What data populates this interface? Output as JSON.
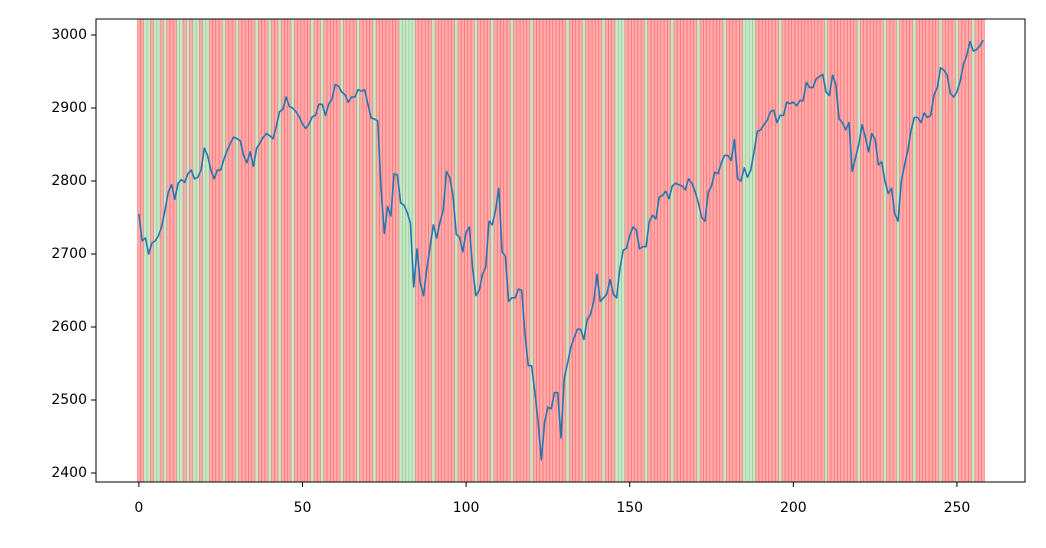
{
  "chart_data": {
    "type": "line",
    "color": "#1f77b4",
    "span_colors": [
      "#ff0000",
      "#2ca02c"
    ],
    "span_states": [
      0,
      0,
      1,
      1,
      0,
      1,
      1,
      0,
      1,
      0,
      0,
      0,
      1,
      1,
      0,
      1,
      0,
      1,
      1,
      0,
      1,
      1,
      0,
      0,
      0,
      0,
      1,
      0,
      0,
      0,
      1,
      0,
      0,
      0,
      0,
      0,
      1,
      0,
      0,
      0,
      1,
      0,
      0,
      1,
      0,
      0,
      0,
      1,
      0,
      0,
      0,
      0,
      0,
      1,
      0,
      0,
      1,
      0,
      0,
      0,
      0,
      0,
      1,
      0,
      0,
      0,
      0,
      1,
      0,
      0,
      0,
      0,
      1,
      0,
      0,
      0,
      0,
      0,
      0,
      0,
      1,
      1,
      1,
      1,
      1,
      0,
      0,
      0,
      0,
      0,
      1,
      0,
      0,
      0,
      0,
      0,
      0,
      1,
      0,
      0,
      0,
      0,
      0,
      1,
      0,
      0,
      0,
      0,
      1,
      0,
      0,
      0,
      0,
      0,
      1,
      0,
      0,
      0,
      0,
      0,
      1,
      0,
      0,
      0,
      0,
      0,
      0,
      0,
      0,
      0,
      0,
      1,
      0,
      0,
      0,
      0,
      1,
      0,
      0,
      0,
      0,
      0,
      1,
      0,
      0,
      0,
      1,
      1,
      1,
      0,
      0,
      0,
      0,
      0,
      0,
      1,
      0,
      0,
      0,
      0,
      0,
      0,
      0,
      1,
      0,
      0,
      0,
      0,
      0,
      0,
      0,
      1,
      0,
      0,
      0,
      0,
      0,
      0,
      0,
      1,
      0,
      0,
      0,
      0,
      0,
      1,
      1,
      1,
      1,
      0,
      0,
      0,
      0,
      0,
      0,
      0,
      1,
      0,
      0,
      0,
      0,
      0,
      0,
      0,
      0,
      0,
      0,
      0,
      0,
      0,
      1,
      0,
      0,
      0,
      0,
      0,
      0,
      0,
      0,
      0,
      1,
      0,
      0,
      0,
      0,
      0,
      0,
      0,
      1,
      0,
      0,
      0,
      1,
      0,
      0,
      0,
      0,
      1,
      0,
      0,
      0,
      0,
      0,
      0,
      0,
      1,
      0,
      0,
      0,
      0,
      1,
      0,
      0,
      0,
      0,
      1,
      0,
      0,
      0
    ],
    "values": [
      2755,
      2718,
      2722,
      2700,
      2715,
      2718,
      2725,
      2738,
      2760,
      2785,
      2795,
      2775,
      2797,
      2802,
      2798,
      2810,
      2815,
      2803,
      2805,
      2815,
      2845,
      2835,
      2815,
      2803,
      2815,
      2815,
      2830,
      2842,
      2852,
      2860,
      2858,
      2855,
      2835,
      2825,
      2840,
      2820,
      2845,
      2852,
      2860,
      2865,
      2862,
      2858,
      2875,
      2895,
      2898,
      2915,
      2902,
      2900,
      2895,
      2888,
      2878,
      2872,
      2878,
      2888,
      2890,
      2905,
      2905,
      2890,
      2905,
      2912,
      2932,
      2930,
      2922,
      2918,
      2908,
      2915,
      2915,
      2925,
      2923,
      2925,
      2905,
      2886,
      2885,
      2882,
      2790,
      2728,
      2765,
      2752,
      2810,
      2808,
      2770,
      2767,
      2757,
      2742,
      2655,
      2707,
      2660,
      2643,
      2680,
      2710,
      2740,
      2722,
      2743,
      2760,
      2813,
      2805,
      2780,
      2727,
      2723,
      2703,
      2730,
      2737,
      2680,
      2643,
      2650,
      2672,
      2682,
      2745,
      2740,
      2760,
      2790,
      2703,
      2697,
      2635,
      2640,
      2640,
      2652,
      2650,
      2590,
      2547,
      2547,
      2512,
      2470,
      2418,
      2470,
      2490,
      2488,
      2510,
      2510,
      2448,
      2530,
      2550,
      2572,
      2585,
      2597,
      2597,
      2583,
      2610,
      2617,
      2635,
      2672,
      2635,
      2640,
      2645,
      2665,
      2645,
      2640,
      2680,
      2705,
      2708,
      2725,
      2737,
      2733,
      2707,
      2710,
      2710,
      2745,
      2753,
      2748,
      2778,
      2780,
      2786,
      2776,
      2793,
      2797,
      2795,
      2793,
      2788,
      2803,
      2797,
      2785,
      2770,
      2750,
      2745,
      2785,
      2793,
      2812,
      2810,
      2825,
      2835,
      2835,
      2828,
      2857,
      2803,
      2800,
      2818,
      2805,
      2815,
      2840,
      2868,
      2870,
      2877,
      2883,
      2895,
      2897,
      2880,
      2890,
      2890,
      2908,
      2906,
      2908,
      2903,
      2910,
      2910,
      2935,
      2928,
      2928,
      2940,
      2943,
      2946,
      2922,
      2917,
      2945,
      2932,
      2885,
      2880,
      2870,
      2880,
      2813,
      2832,
      2850,
      2877,
      2860,
      2840,
      2865,
      2857,
      2822,
      2826,
      2800,
      2783,
      2790,
      2755,
      2745,
      2800,
      2822,
      2842,
      2870,
      2887,
      2887,
      2880,
      2893,
      2887,
      2890,
      2918,
      2928,
      2955,
      2952,
      2945,
      2920,
      2915,
      2922,
      2937,
      2960,
      2972,
      2991,
      2978,
      2980,
      2985,
      2993
    ],
    "xlim": [
      -13.1,
      270.8
    ],
    "xticks": [
      0,
      50,
      100,
      150,
      200,
      250
    ],
    "ylim": [
      2387.7,
      3021.9
    ],
    "yticks": [
      2400,
      2500,
      2600,
      2700,
      2800,
      2900,
      3000
    ]
  }
}
